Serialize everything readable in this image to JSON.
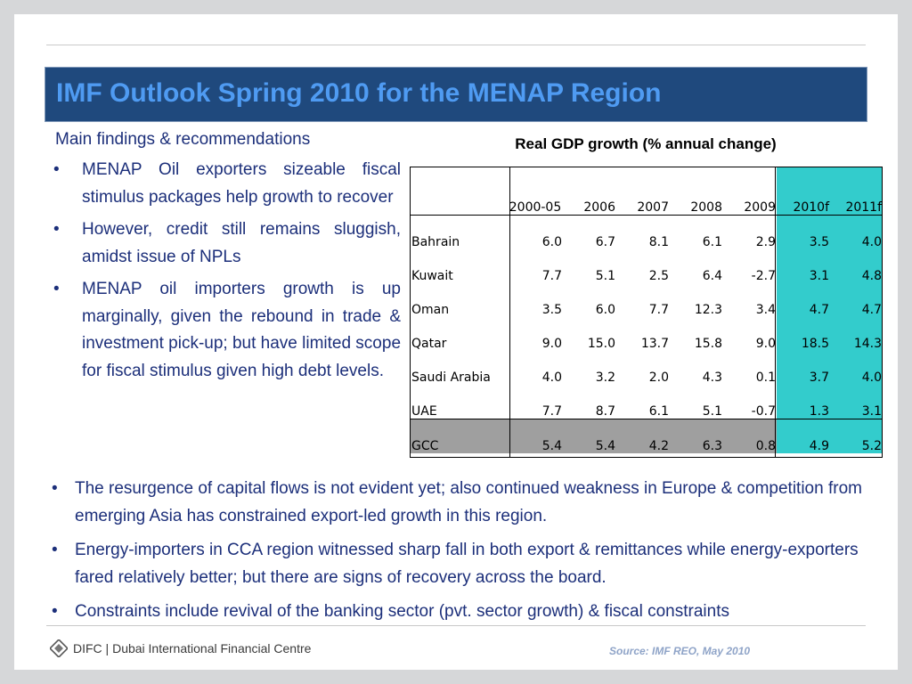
{
  "title": "IMF Outlook Spring 2010 for the MENAP Region",
  "subheading": "Main findings & recommendations",
  "left_bullets": [
    "MENAP Oil exporters sizeable fiscal stimulus packages help growth to recover",
    "However, credit still remains sluggish, amidst  issue of NPLs",
    "MENAP oil importers growth is up marginally, given the rebound in trade & investment pick-up; but have limited scope for fiscal stimulus given high debt levels."
  ],
  "bullet_char": "•",
  "table": {
    "title": "Real GDP growth (% annual change)",
    "columns": [
      "2000-05",
      "2006",
      "2007",
      "2008",
      "2009",
      "2010f",
      "2011f"
    ],
    "rows": [
      {
        "name": "Bahrain",
        "values": [
          "6.0",
          "6.7",
          "8.1",
          "6.1",
          "2.9",
          "3.5",
          "4.0"
        ]
      },
      {
        "name": "Kuwait",
        "values": [
          "7.7",
          "5.1",
          "2.5",
          "6.4",
          "-2.7",
          "3.1",
          "4.8"
        ]
      },
      {
        "name": "Oman",
        "values": [
          "3.5",
          "6.0",
          "7.7",
          "12.3",
          "3.4",
          "4.7",
          "4.7"
        ]
      },
      {
        "name": "Qatar",
        "values": [
          "9.0",
          "15.0",
          "13.7",
          "15.8",
          "9.0",
          "18.5",
          "14.3"
        ]
      },
      {
        "name": "Saudi Arabia",
        "values": [
          "4.0",
          "3.2",
          "2.0",
          "4.3",
          "0.1",
          "3.7",
          "4.0"
        ]
      },
      {
        "name": "UAE",
        "values": [
          "7.7",
          "8.7",
          "6.1",
          "5.1",
          "-0.7",
          "1.3",
          "3.1"
        ]
      },
      {
        "name": "GCC",
        "values": [
          "5.4",
          "5.4",
          "4.2",
          "6.3",
          "0.8",
          "4.9",
          "5.2"
        ]
      }
    ]
  },
  "bottom_bullets": [
    "The resurgence of capital flows is not evident yet; also continued weakness in Europe & competition from emerging Asia has constrained export-led growth in this region.",
    "Energy-importers in CCA region witnessed sharp fall in both export & remittances while energy-exporters fared relatively better; but there are signs of recovery across the board.",
    "Constraints include revival of the banking sector  (pvt. sector growth) & fiscal constraints"
  ],
  "footer": {
    "logo_text": "DIFC | Dubai International Financial Centre",
    "source": "Source: IMF REO, May 2010"
  },
  "colors": {
    "title_bar": "#1f497d",
    "title_text": "#4f9bf2",
    "body_text": "#1c2f7a",
    "forecast_cells": "#33cccc",
    "gcc_row": "#9f9f9f",
    "source_text": "#8fa4c8"
  },
  "icons": [
    "difc-logo-icon"
  ]
}
